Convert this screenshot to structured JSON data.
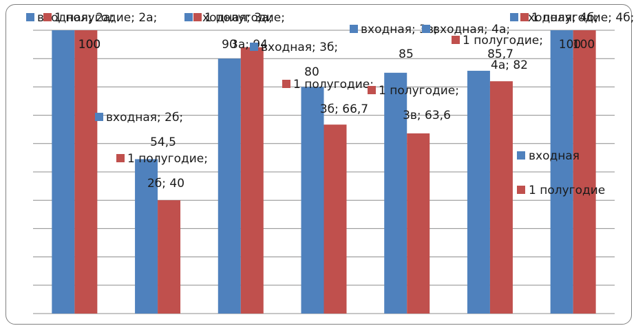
{
  "chart_data": {
    "type": "bar",
    "categories": [
      "2а",
      "2б",
      "3а",
      "3б",
      "3в",
      "4а",
      "4б"
    ],
    "series": [
      {
        "name": "входная",
        "values": [
          100,
          54.5,
          90,
          80,
          85,
          85.7,
          100
        ]
      },
      {
        "name": "1 полугодие",
        "values": [
          100,
          40,
          94,
          66.7,
          63.6,
          82,
          100
        ]
      }
    ],
    "ylim": [
      0,
      100
    ],
    "grid": true,
    "legend_position": "right",
    "data_labels": [
      [
        "входная; 2а;",
        "100"
      ],
      [
        "1 полугодие; 2а;",
        "100"
      ],
      [
        "входная; 2б;",
        "54,5"
      ],
      [
        "1 полугодие;",
        "2б; 40"
      ],
      [
        "входная; 3а;",
        "90"
      ],
      [
        "1 полугодие;",
        "3а; 94"
      ],
      [
        "входная; 3б;",
        "80"
      ],
      [
        "1 полугодие;",
        "3б; 66,7"
      ],
      [
        "входная; 3в;",
        "85"
      ],
      [
        "1 полугодие;",
        "3в; 63,6"
      ],
      [
        "входная; 4а;",
        "85,7"
      ],
      [
        "1 полугодие;",
        "4а; 82"
      ],
      [
        "входная; 4б;",
        "100"
      ],
      [
        "1 полугодие; 4б;",
        "100"
      ]
    ],
    "colors": {
      "входная": "#4f81bd",
      "1 полугодие": "#c0504d",
      "grid": "#8c8c8c"
    }
  }
}
